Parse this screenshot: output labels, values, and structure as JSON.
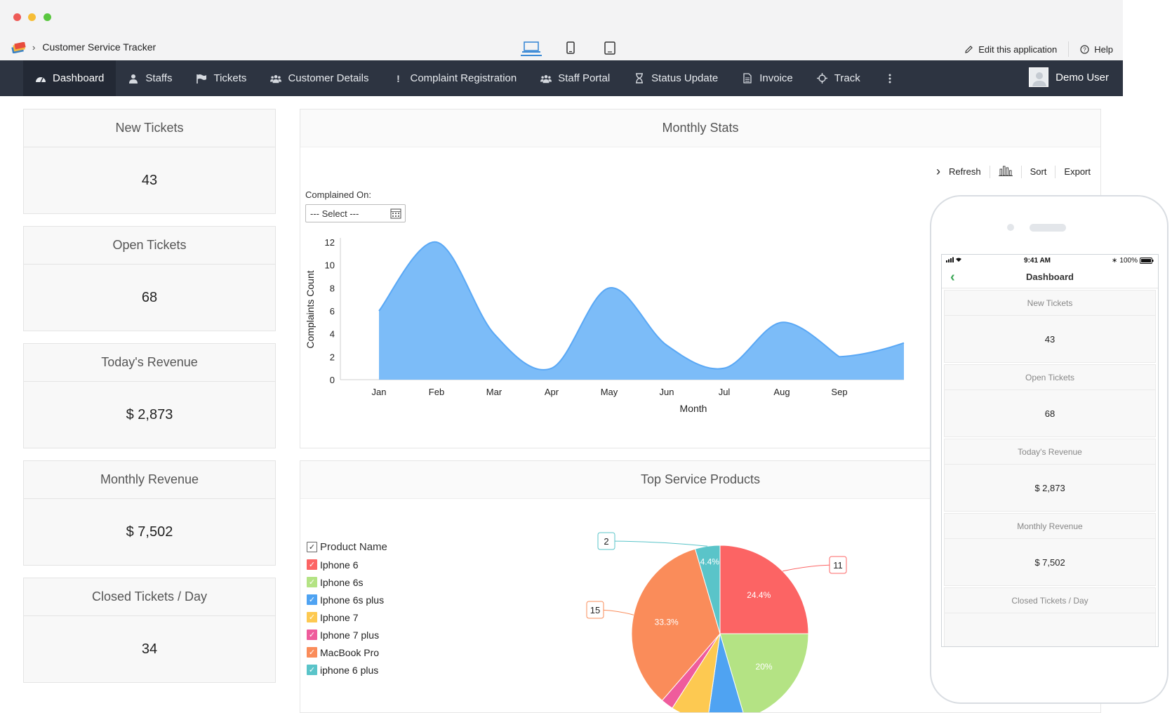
{
  "window": {
    "traffic_lights": [
      "#ee5b57",
      "#f6bd36",
      "#5ac740"
    ]
  },
  "app": {
    "title": "Customer Service Tracker",
    "edit_label": "Edit this application",
    "help_label": "Help"
  },
  "nav": {
    "items": [
      {
        "label": "Dashboard",
        "icon": "dashboard-icon"
      },
      {
        "label": "Staffs",
        "icon": "user-icon"
      },
      {
        "label": "Tickets",
        "icon": "flag-icon"
      },
      {
        "label": "Customer Details",
        "icon": "group-icon"
      },
      {
        "label": "Complaint Registration",
        "icon": "exclamation-icon"
      },
      {
        "label": "Staff Portal",
        "icon": "group-icon"
      },
      {
        "label": "Status Update",
        "icon": "hourglass-icon"
      },
      {
        "label": "Invoice",
        "icon": "document-icon"
      },
      {
        "label": "Track",
        "icon": "crosshair-icon"
      }
    ],
    "user": "Demo User"
  },
  "cards": [
    {
      "title": "New Tickets",
      "value": "43"
    },
    {
      "title": "Open Tickets",
      "value": "68"
    },
    {
      "title": "Today's Revenue",
      "value": "$ 2,873"
    },
    {
      "title": "Monthly Revenue",
      "value": "$ 7,502"
    },
    {
      "title": "Closed Tickets / Day",
      "value": "34"
    }
  ],
  "monthly": {
    "title": "Monthly Stats",
    "tools": {
      "refresh": "Refresh",
      "sort": "Sort",
      "export": "Export"
    },
    "filter_label": "Complained On:",
    "select_value": "--- Select ---"
  },
  "products": {
    "title": "Top Service Products",
    "legend_header": "Product Name"
  },
  "mobile": {
    "time": "9:41 AM",
    "battery": "100%",
    "title": "Dashboard"
  },
  "chart_data": [
    {
      "type": "area",
      "title": "Monthly Stats",
      "xlabel": "Month",
      "ylabel": "Complaints Count",
      "categories": [
        "Jan",
        "Feb",
        "Mar",
        "Apr",
        "May",
        "Jun",
        "Jul",
        "Aug",
        "Sep"
      ],
      "values": [
        6,
        12,
        4,
        1,
        8,
        3,
        1,
        5,
        2
      ],
      "yticks": [
        0,
        2,
        4,
        6,
        8,
        10,
        12
      ],
      "ylim": [
        0,
        12
      ],
      "color": "#7cbcf8"
    },
    {
      "type": "pie",
      "title": "Top Service Products",
      "series": [
        {
          "name": "Iphone 6",
          "value": 11,
          "pct": "24.4%",
          "color": "#fc6464"
        },
        {
          "name": "Iphone 6s",
          "value": 9,
          "pct": "20%",
          "color": "#b4e384"
        },
        {
          "name": "Iphone 6s plus",
          "value": 3,
          "pct": "",
          "color": "#4fa3f2"
        },
        {
          "name": "Iphone 7",
          "value": 3,
          "pct": "",
          "color": "#fdc951"
        },
        {
          "name": "Iphone 7 plus",
          "value": 1,
          "pct": "",
          "color": "#ef5c9c"
        },
        {
          "name": "MacBook Pro",
          "value": 15,
          "pct": "33.3%",
          "color": "#fa8c5a"
        },
        {
          "name": "iphone 6 plus",
          "value": 2,
          "pct": "4.4%",
          "color": "#5ac4c9"
        }
      ]
    }
  ]
}
